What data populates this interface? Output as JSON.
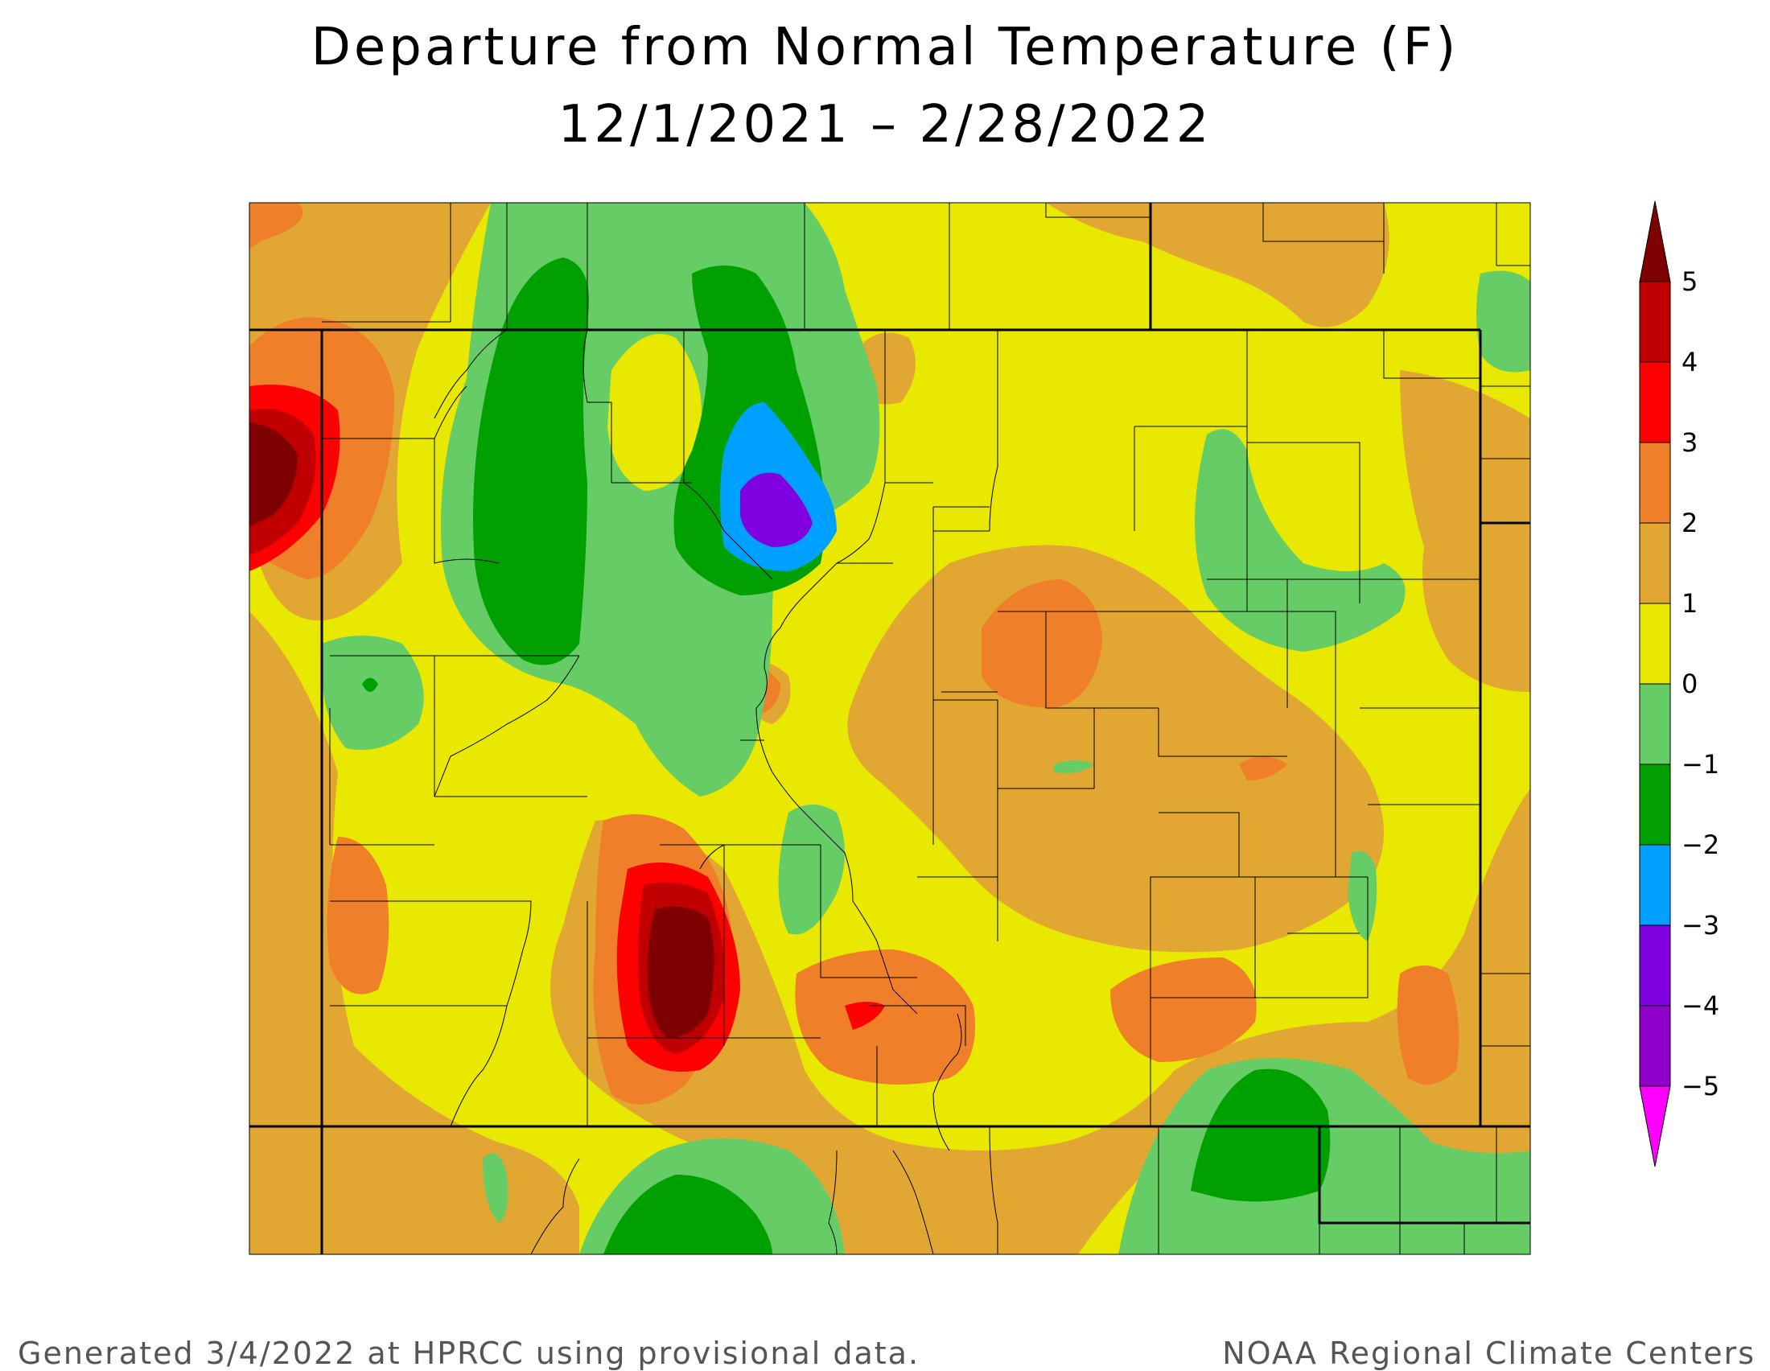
{
  "title": {
    "line1": "Departure from Normal Temperature (F)",
    "line2": "12/1/2021 – 2/28/2022"
  },
  "footer": {
    "left": "Generated 3/4/2022 at HPRCC using provisional data.",
    "right": "NOAA Regional Climate Centers"
  },
  "legend": {
    "labels": [
      "5",
      "4",
      "3",
      "2",
      "1",
      "0",
      "−1",
      "−2",
      "−3",
      "−4",
      "−5"
    ],
    "colors": [
      "#7f0000",
      "#c00000",
      "#ff0000",
      "#f07f2a",
      "#e2a732",
      "#e8e800",
      "#66cc66",
      "#00a000",
      "#00a0ff",
      "#8000e0",
      "#ff00ff"
    ]
  }
}
